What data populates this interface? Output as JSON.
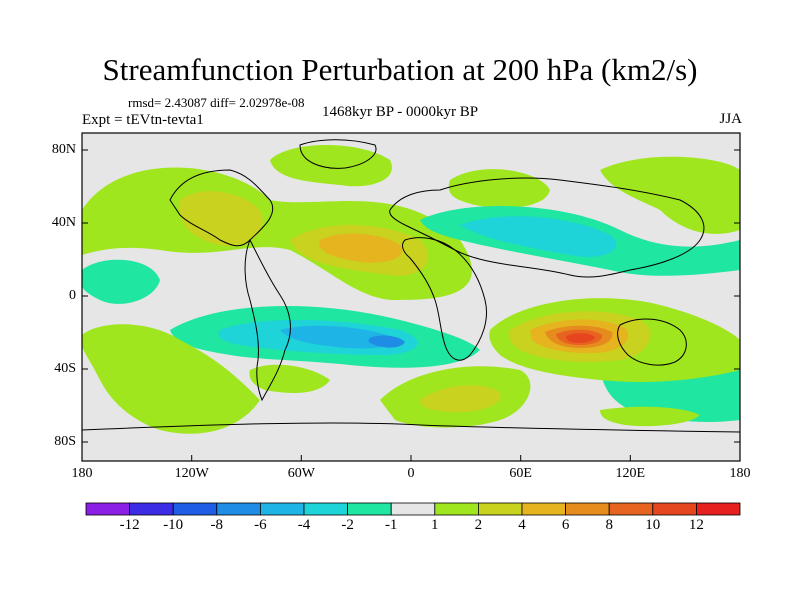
{
  "title": "Streamfunction Perturbation at 200 hPa (km2/s)",
  "stats": "rmsd= 2.43087 diff= 2.02978e-08",
  "experiment": "Expt = tEVtn-tevta1",
  "period": "1468kyr BP - 0000kyr BP",
  "season": "JJA",
  "lat_ticks": [
    "80N",
    "40N",
    "0",
    "40S",
    "80S"
  ],
  "lon_ticks": [
    "180",
    "120W",
    "60W",
    "0",
    "60E",
    "120E",
    "180"
  ],
  "colorbar": {
    "labels": [
      "-12",
      "-10",
      "-8",
      "-6",
      "-4",
      "-2",
      "-1",
      "1",
      "2",
      "4",
      "6",
      "8",
      "10",
      "12"
    ],
    "colors": [
      "#8c1fe6",
      "#3c2ce6",
      "#1f5de6",
      "#1f8ce6",
      "#1fb4e6",
      "#1fd4d8",
      "#1fe6a0",
      "#e6e6e6",
      "#a0e61f",
      "#c8d21f",
      "#e6b41f",
      "#e68c1f",
      "#e6641f",
      "#e6461f",
      "#e61f1f"
    ]
  }
}
